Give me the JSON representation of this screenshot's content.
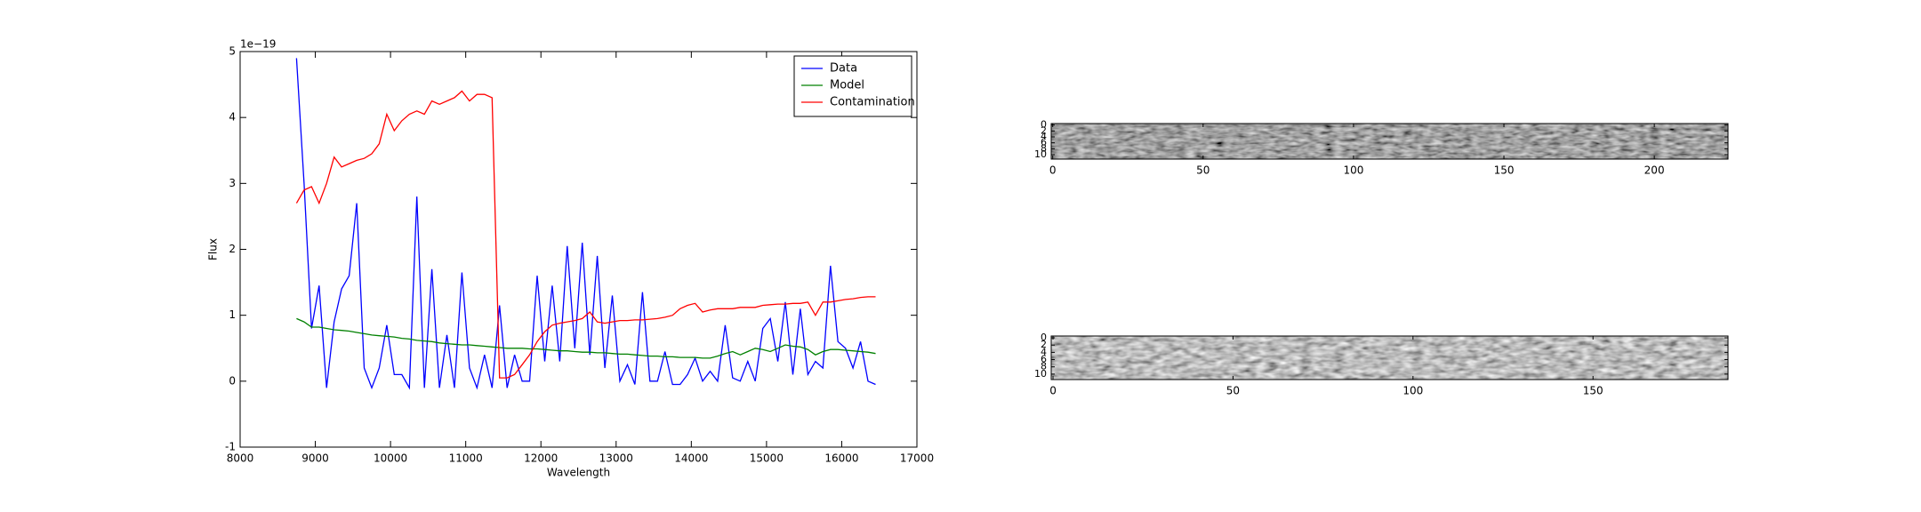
{
  "chart_data": [
    {
      "type": "line",
      "xlabel": "Wavelength",
      "ylabel": "Flux",
      "offset_label": "1e−19",
      "xlim": [
        8000,
        17000
      ],
      "xticks": [
        8000,
        9000,
        10000,
        11000,
        12000,
        13000,
        14000,
        15000,
        16000,
        17000
      ],
      "ylim": [
        -1,
        5
      ],
      "yticks": [
        -1,
        0,
        1,
        2,
        3,
        4,
        5
      ],
      "legend": "upper right",
      "x": [
        8750,
        8850,
        8950,
        9050,
        9150,
        9250,
        9350,
        9450,
        9550,
        9650,
        9750,
        9850,
        9950,
        10050,
        10150,
        10250,
        10350,
        10450,
        10550,
        10650,
        10750,
        10850,
        10950,
        11050,
        11150,
        11250,
        11350,
        11450,
        11550,
        11650,
        11750,
        11850,
        11950,
        12050,
        12150,
        12250,
        12350,
        12450,
        12550,
        12650,
        12750,
        12850,
        12950,
        13050,
        13150,
        13250,
        13350,
        13450,
        13550,
        13650,
        13750,
        13850,
        13950,
        14050,
        14150,
        14250,
        14350,
        14450,
        14550,
        14650,
        14750,
        14850,
        14950,
        15050,
        15150,
        15250,
        15350,
        15450,
        15550,
        15650,
        15750,
        15850,
        15950,
        16050,
        16150,
        16250,
        16350,
        16450
      ],
      "series": [
        {
          "name": "Data",
          "color": "#0000ff",
          "values": [
            4.9,
            3.0,
            0.8,
            1.45,
            -0.1,
            0.9,
            1.4,
            1.6,
            2.7,
            0.2,
            -0.1,
            0.2,
            0.85,
            0.1,
            0.1,
            -0.1,
            2.8,
            -0.1,
            1.7,
            -0.1,
            0.7,
            -0.1,
            1.65,
            0.2,
            -0.1,
            0.4,
            -0.1,
            1.15,
            -0.1,
            0.4,
            0.0,
            0.0,
            1.6,
            0.3,
            1.45,
            0.3,
            2.05,
            0.5,
            2.1,
            0.4,
            1.9,
            0.2,
            1.3,
            0.0,
            0.25,
            -0.05,
            1.35,
            0.0,
            0.0,
            0.45,
            -0.05,
            -0.05,
            0.1,
            0.35,
            0.0,
            0.15,
            0.0,
            0.85,
            0.05,
            0.0,
            0.3,
            0.0,
            0.8,
            0.95,
            0.3,
            1.2,
            0.1,
            1.1,
            0.1,
            0.3,
            0.2,
            1.75,
            0.6,
            0.5,
            0.2,
            0.6,
            0.0,
            -0.05
          ]
        },
        {
          "name": "Model",
          "color": "#008000",
          "values": [
            0.95,
            0.9,
            0.82,
            0.82,
            0.8,
            0.78,
            0.77,
            0.76,
            0.74,
            0.72,
            0.7,
            0.69,
            0.68,
            0.67,
            0.65,
            0.64,
            0.62,
            0.61,
            0.6,
            0.58,
            0.57,
            0.56,
            0.55,
            0.55,
            0.54,
            0.53,
            0.52,
            0.51,
            0.5,
            0.5,
            0.5,
            0.49,
            0.49,
            0.48,
            0.47,
            0.46,
            0.46,
            0.45,
            0.44,
            0.44,
            0.43,
            0.43,
            0.42,
            0.41,
            0.41,
            0.4,
            0.39,
            0.38,
            0.38,
            0.37,
            0.37,
            0.36,
            0.36,
            0.36,
            0.35,
            0.35,
            0.38,
            0.42,
            0.45,
            0.4,
            0.45,
            0.5,
            0.48,
            0.45,
            0.5,
            0.55,
            0.53,
            0.52,
            0.48,
            0.4,
            0.45,
            0.48,
            0.48,
            0.47,
            0.46,
            0.45,
            0.44,
            0.42
          ]
        },
        {
          "name": "Contamination",
          "color": "#ff0000",
          "values": [
            2.7,
            2.9,
            2.95,
            2.7,
            3.0,
            3.4,
            3.25,
            3.3,
            3.35,
            3.38,
            3.45,
            3.6,
            4.05,
            3.8,
            3.95,
            4.05,
            4.1,
            4.05,
            4.25,
            4.2,
            4.25,
            4.3,
            4.4,
            4.25,
            4.35,
            4.35,
            4.3,
            0.05,
            0.05,
            0.1,
            0.25,
            0.4,
            0.6,
            0.75,
            0.85,
            0.88,
            0.9,
            0.92,
            0.95,
            1.05,
            0.9,
            0.88,
            0.9,
            0.92,
            0.92,
            0.93,
            0.93,
            0.94,
            0.95,
            0.97,
            1.0,
            1.1,
            1.15,
            1.18,
            1.05,
            1.08,
            1.1,
            1.1,
            1.1,
            1.12,
            1.12,
            1.12,
            1.15,
            1.16,
            1.17,
            1.17,
            1.18,
            1.18,
            1.2,
            1.0,
            1.2,
            1.2,
            1.22,
            1.24,
            1.25,
            1.27,
            1.28,
            1.28
          ]
        }
      ]
    },
    {
      "type": "image",
      "xlim": [
        -0.5,
        224.5
      ],
      "xticks": [
        0,
        50,
        100,
        150,
        200
      ],
      "ylim": [
        11.5,
        -0.5
      ],
      "yticks": [
        0,
        2,
        4,
        6,
        8,
        10
      ]
    },
    {
      "type": "image",
      "xlim": [
        -0.5,
        187.5
      ],
      "xticks": [
        0,
        50,
        100,
        150
      ],
      "ylim": [
        11.5,
        -0.5
      ],
      "yticks": [
        0,
        2,
        4,
        6,
        8,
        10
      ]
    }
  ]
}
